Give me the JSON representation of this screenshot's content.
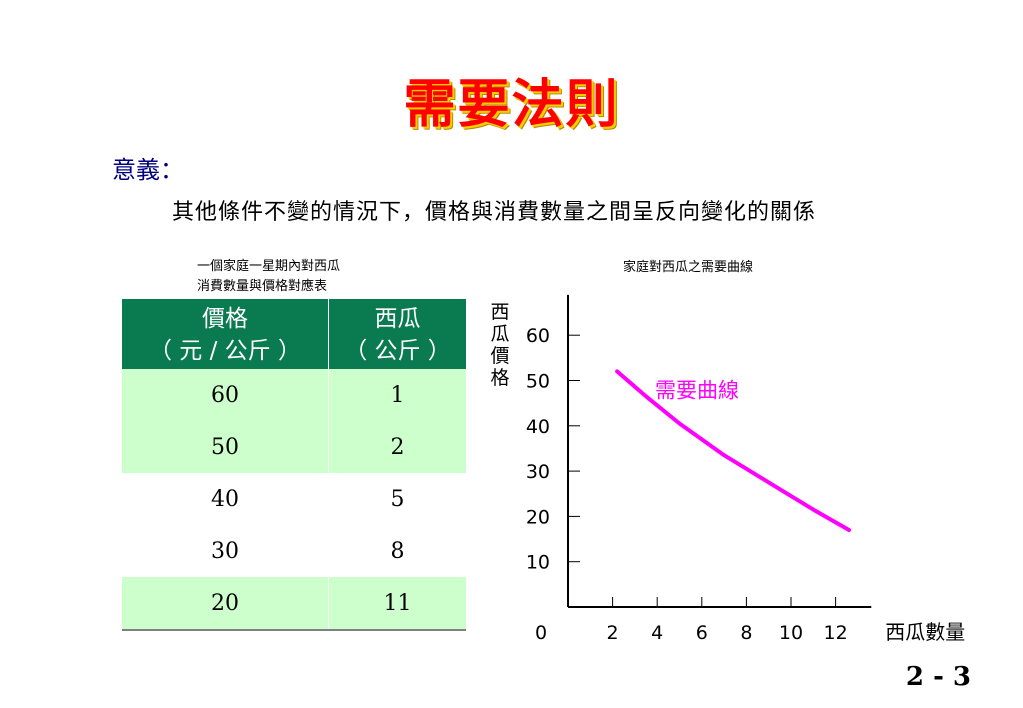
{
  "slide": {
    "title": "需要法則",
    "meaning_label": "意義：",
    "meaning_text": "其他條件不變的情況下，價格與消費數量之間呈反向變化的關係",
    "page_number": "2 - 3"
  },
  "table": {
    "caption_line1": "一個家庭一星期內對西瓜",
    "caption_line2": "消費數量與價格對應表",
    "headers": [
      {
        "line1": "價格",
        "line2": "（ 元 / 公斤 ）"
      },
      {
        "line1": "西瓜",
        "line2": "（ 公斤 ）"
      }
    ],
    "rows": [
      [
        "60",
        "1"
      ],
      [
        "50",
        "2"
      ],
      [
        "40",
        "5"
      ],
      [
        "30",
        "8"
      ],
      [
        "20",
        "11"
      ]
    ]
  },
  "chart_caption": "家庭對西瓜之需要曲線",
  "chart_data": {
    "type": "line",
    "ylabel": "西瓜價格",
    "xlabel": "西瓜數量",
    "origin_label": "0",
    "xlim": [
      0,
      13.6
    ],
    "ylim": [
      0,
      70
    ],
    "x_ticks": [
      "2",
      "4",
      "6",
      "8",
      "10",
      "12"
    ],
    "y_ticks": [
      "10",
      "20",
      "30",
      "40",
      "50",
      "60"
    ],
    "series": [
      {
        "name": "需要曲線",
        "color": "#ff00ff",
        "x": [
          2.2,
          3.5,
          5.0,
          7.0,
          9.0,
          11.0,
          12.6
        ],
        "y": [
          52,
          46.5,
          40.5,
          33.5,
          27.5,
          21.5,
          17
        ]
      }
    ]
  },
  "colors": {
    "title": "#ff0000",
    "title_shadow": "#ffcc00",
    "label": "#000080",
    "table_header": "#0a7a50",
    "table_alt_row": "#ccffcc",
    "curve": "#ff00ff"
  }
}
